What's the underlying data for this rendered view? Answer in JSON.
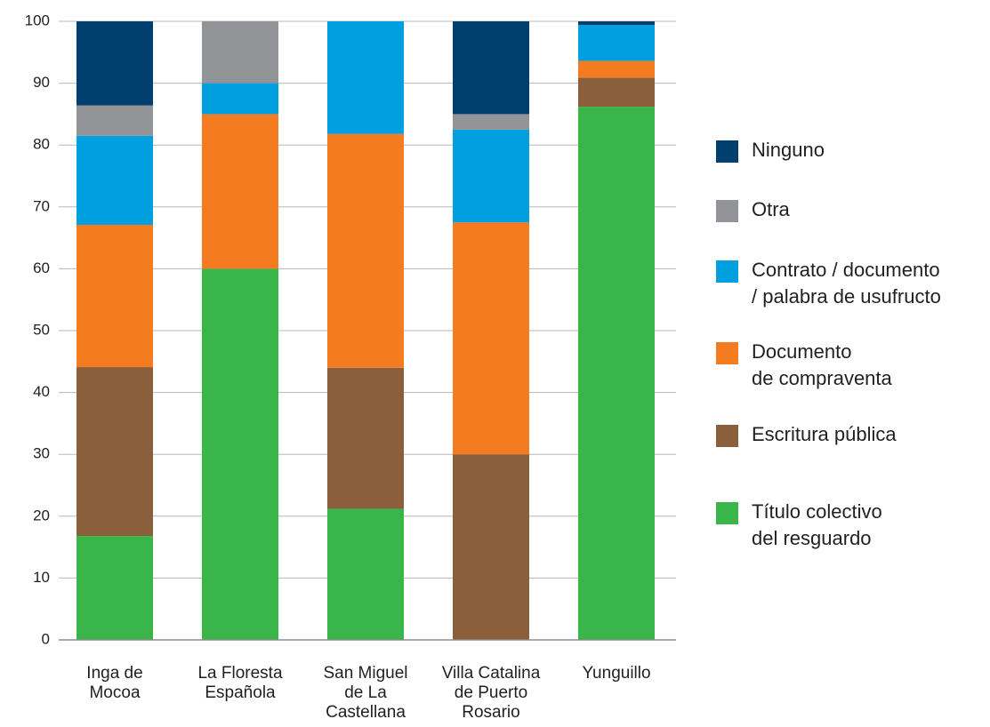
{
  "chart_data": {
    "type": "stacked_bar",
    "categories": [
      "Inga de\nMocoa",
      "La Floresta\nEspañola",
      "San Miguel\nde La\nCastellana",
      "Villa Catalina\nde Puerto\nRosario",
      "Yunguillo"
    ],
    "series": [
      {
        "name": "Título colectivo\ndel resguardo",
        "color": "#3ab54a",
        "values": [
          16.8,
          60,
          21.2,
          0,
          86.2
        ]
      },
      {
        "name": "Escritura pública",
        "color": "#8b5e3c",
        "values": [
          27.3,
          0,
          22.8,
          30,
          4.7
        ]
      },
      {
        "name": "Documento\nde compraventa",
        "color": "#f47b20",
        "values": [
          23.0,
          25,
          37.8,
          37.5,
          2.7
        ]
      },
      {
        "name": "Contrato / documento\n/ palabra de usufructo",
        "color": "#009fdf",
        "values": [
          14.4,
          5,
          18.2,
          15,
          5.8
        ]
      },
      {
        "name": "Otra",
        "color": "#929497",
        "values": [
          4.9,
          10,
          0,
          2.5,
          0
        ]
      },
      {
        "name": "Ninguno",
        "color": "#003f6e",
        "values": [
          13.6,
          0,
          0,
          15,
          0.6
        ]
      }
    ],
    "ylim": [
      0,
      100
    ],
    "yticks": [
      0,
      10,
      20,
      30,
      40,
      50,
      60,
      70,
      80,
      90,
      100
    ],
    "grid": true
  }
}
